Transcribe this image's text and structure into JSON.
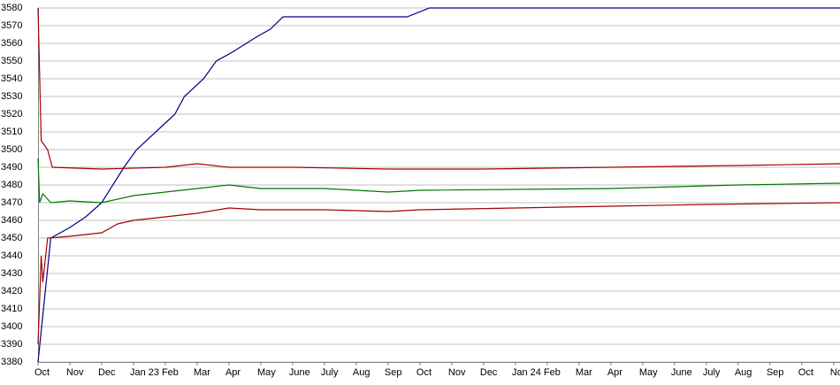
{
  "chart_data": {
    "type": "line",
    "xlim": [
      0,
      25.2
    ],
    "xticks": [
      {
        "value": 0,
        "label": "Oct"
      },
      {
        "value": 1,
        "label": "Nov"
      },
      {
        "value": 2,
        "label": "Dec"
      },
      {
        "value": 3,
        "label": "Jan 23"
      },
      {
        "value": 4,
        "label": "Feb"
      },
      {
        "value": 5,
        "label": "Mar"
      },
      {
        "value": 6,
        "label": "Apr"
      },
      {
        "value": 7,
        "label": "May"
      },
      {
        "value": 8,
        "label": "June"
      },
      {
        "value": 9,
        "label": "July"
      },
      {
        "value": 10,
        "label": "Aug"
      },
      {
        "value": 11,
        "label": "Sep"
      },
      {
        "value": 12,
        "label": "Oct"
      },
      {
        "value": 13,
        "label": "Nov"
      },
      {
        "value": 14,
        "label": "Dec"
      },
      {
        "value": 15,
        "label": "Jan 24"
      },
      {
        "value": 16,
        "label": "Feb"
      },
      {
        "value": 17,
        "label": "Mar"
      },
      {
        "value": 18,
        "label": "Apr"
      },
      {
        "value": 19,
        "label": "May"
      },
      {
        "value": 20,
        "label": "June"
      },
      {
        "value": 21,
        "label": "July"
      },
      {
        "value": 22,
        "label": "Aug"
      },
      {
        "value": 23,
        "label": "Sep"
      },
      {
        "value": 24,
        "label": "Oct"
      },
      {
        "value": 25,
        "label": "No"
      }
    ],
    "ylim": [
      3380,
      3580
    ],
    "yticks": [
      3380,
      3390,
      3400,
      3410,
      3420,
      3430,
      3440,
      3450,
      3460,
      3470,
      3480,
      3490,
      3500,
      3510,
      3520,
      3530,
      3540,
      3550,
      3560,
      3570,
      3580
    ],
    "grid": true,
    "series": [
      {
        "color": "#00008b",
        "x": [
          0,
          0.4,
          1,
          1.5,
          2,
          2.7,
          3.1,
          4,
          4.3,
          4.6,
          5.2,
          5.6,
          6.1,
          6.9,
          7.3,
          7.7,
          11.6,
          12.3,
          25.2
        ],
        "values": [
          3380,
          3450,
          3456,
          3462,
          3470,
          3490,
          3500,
          3515,
          3520,
          3530,
          3540,
          3550,
          3555,
          3564,
          3568,
          3575,
          3575,
          3580,
          3580
        ]
      },
      {
        "color": "#a50000",
        "x": [
          0,
          0.1,
          0.3,
          0.45,
          2,
          4,
          5,
          6,
          8,
          11,
          14,
          18,
          22,
          25.2
        ],
        "values": [
          3580,
          3505,
          3500,
          3490,
          3489,
          3490,
          3492,
          3490,
          3490,
          3489,
          3489,
          3490,
          3491,
          3492
        ]
      },
      {
        "color": "#007800",
        "x": [
          0,
          0.05,
          0.15,
          0.4,
          1,
          2,
          3,
          4,
          5,
          6,
          7,
          9,
          11,
          12,
          18,
          20,
          22,
          25.2
        ],
        "values": [
          3495,
          3470,
          3475,
          3470,
          3471,
          3470,
          3474,
          3476,
          3478,
          3480,
          3478,
          3478,
          3476,
          3477,
          3478,
          3479,
          3480,
          3481
        ]
      },
      {
        "color": "#a50000",
        "x": [
          0,
          0.1,
          0.15,
          0.3,
          1,
          2,
          2.5,
          3,
          4,
          5,
          6,
          7,
          9,
          11,
          12,
          15,
          18,
          21,
          25.2
        ],
        "values": [
          3390,
          3440,
          3425,
          3450,
          3451,
          3453,
          3458,
          3460,
          3462,
          3464,
          3467,
          3466,
          3466,
          3465,
          3466,
          3467,
          3468,
          3469,
          3470
        ]
      }
    ]
  }
}
